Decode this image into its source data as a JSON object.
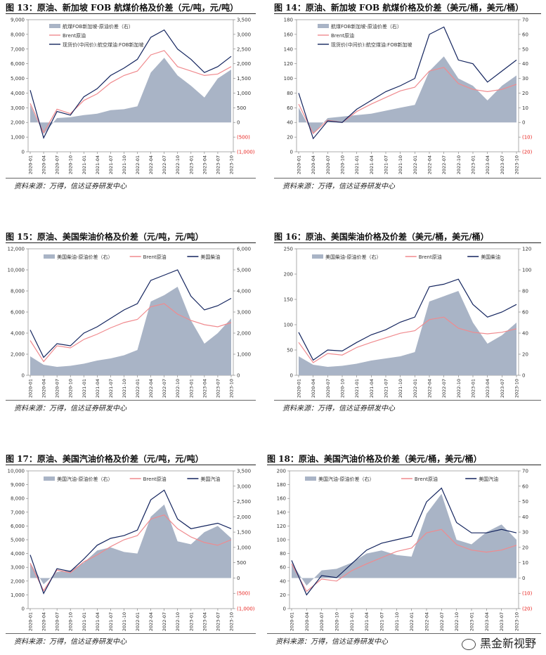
{
  "source_label": "资料来源：万得，信达证券研发中心",
  "watermark": "黑金新视野",
  "colors": {
    "spread": "#a9b4c6",
    "brent": "#f08a8e",
    "product": "#13245e",
    "neg": "#e8201c",
    "axis": "#777777"
  },
  "x_ticks": [
    "2020-01",
    "2020-04",
    "2020-07",
    "2020-10",
    "2021-01",
    "2021-04",
    "2021-07",
    "2021-10",
    "2022-01",
    "2022-04",
    "2022-07",
    "2022-10",
    "2023-01",
    "2023-04",
    "2023-07",
    "2023-10"
  ],
  "chart_data": [
    {
      "type": "line",
      "title": "图 13：原油、新加坡 FOB 航煤价格及价差（元/吨，元/吨）",
      "yleft_ticks": [
        0,
        1000,
        2000,
        3000,
        4000,
        5000,
        6000,
        7000,
        8000,
        9000
      ],
      "yleft_labels": [
        "0",
        "1,000",
        "2,000",
        "3,000",
        "4,000",
        "5,000",
        "6,000",
        "7,000",
        "8,000",
        "9,000"
      ],
      "yright_ticks": [
        -1000,
        -500,
        0,
        500,
        1000,
        1500,
        2000,
        2500,
        3000,
        3500
      ],
      "yright_labels": [
        "(1,000)",
        "(500)",
        "0",
        "500",
        "1,000",
        "1,500",
        "2,000",
        "2,500",
        "3,000",
        "3,500"
      ],
      "ylim_left": [
        0,
        9000
      ],
      "ylim_right": [
        -1000,
        3500
      ],
      "legend": [
        "航煤FOB新加坡-原油价差（右）",
        "Brent原油",
        "现货价(中间价):航空煤油:FOB新加坡"
      ],
      "legend_layout": "vertical",
      "x": [
        "2020-01",
        "2020-04",
        "2020-07",
        "2020-10",
        "2021-01",
        "2021-04",
        "2021-07",
        "2021-10",
        "2022-01",
        "2022-04",
        "2022-07",
        "2022-10",
        "2023-01",
        "2023-04",
        "2023-07",
        "2023-10"
      ],
      "series": [
        {
          "name": "航煤FOB新加坡-原油价差（右）",
          "axis": "right",
          "style": "area",
          "values": [
            600,
            -400,
            150,
            180,
            250,
            300,
            420,
            450,
            550,
            1700,
            2200,
            1600,
            1250,
            850,
            1500,
            1800
          ]
        },
        {
          "name": "Brent原油",
          "axis": "left",
          "style": "line",
          "values": [
            3300,
            1300,
            2900,
            2600,
            3500,
            3950,
            4700,
            5200,
            5500,
            6600,
            6900,
            5800,
            5500,
            5200,
            5300,
            5800
          ]
        },
        {
          "name": "现货价(中间价):航空煤油:FOB新加坡",
          "axis": "left",
          "style": "line",
          "values": [
            4200,
            950,
            2750,
            2500,
            3750,
            4300,
            5200,
            5700,
            6300,
            7800,
            8300,
            7000,
            6300,
            5400,
            5800,
            6500
          ]
        }
      ]
    },
    {
      "type": "line",
      "title": "图 14：原油、新加坡 FOB 航煤价格及价差（美元/桶，美元/桶）",
      "yleft_ticks": [
        0,
        20,
        40,
        60,
        80,
        100,
        120,
        140,
        160,
        180
      ],
      "yleft_labels": [
        "0",
        "20",
        "40",
        "60",
        "80",
        "100",
        "120",
        "140",
        "160",
        "180"
      ],
      "yright_ticks": [
        -20,
        -10,
        0,
        10,
        20,
        30,
        40,
        50,
        60,
        70
      ],
      "yright_labels": [
        "(20)",
        "(10)",
        "0",
        "10",
        "20",
        "30",
        "40",
        "50",
        "60",
        "70"
      ],
      "ylim_left": [
        0,
        180
      ],
      "ylim_right": [
        -20,
        70
      ],
      "legend": [
        "航煤FOB新加坡-原油价差（右）",
        "Brent原油",
        "现货价(中间价):航空煤油:FOB新加坡"
      ],
      "legend_layout": "vertical",
      "x": [
        "2020-01",
        "2020-04",
        "2020-07",
        "2020-10",
        "2021-01",
        "2021-04",
        "2021-07",
        "2021-10",
        "2022-01",
        "2022-04",
        "2022-07",
        "2022-10",
        "2023-01",
        "2023-04",
        "2023-07",
        "2023-10"
      ],
      "series": [
        {
          "name": "航煤FOB新加坡-原油价差（右）",
          "axis": "right",
          "style": "area",
          "values": [
            10,
            -8,
            3,
            4,
            5,
            6,
            8,
            10,
            12,
            35,
            45,
            30,
            25,
            15,
            25,
            32
          ]
        },
        {
          "name": "Brent原油",
          "axis": "left",
          "style": "line",
          "values": [
            65,
            25,
            43,
            40,
            55,
            65,
            74,
            83,
            88,
            110,
            115,
            93,
            85,
            82,
            85,
            92
          ]
        },
        {
          "name": "现货价(中间价):航空煤油:FOB新加坡",
          "axis": "left",
          "style": "line",
          "values": [
            80,
            18,
            42,
            40,
            58,
            70,
            82,
            90,
            100,
            160,
            170,
            125,
            120,
            95,
            110,
            125
          ]
        }
      ]
    },
    {
      "type": "line",
      "title": "图 15：原油、美国柴油价格及价差（元/吨，元/吨）",
      "yleft_ticks": [
        0,
        2000,
        4000,
        6000,
        8000,
        10000,
        12000
      ],
      "yleft_labels": [
        "0",
        "2,000",
        "4,000",
        "6,000",
        "8,000",
        "10,000",
        "12,000"
      ],
      "yright_ticks": [
        0,
        1000,
        2000,
        3000,
        4000,
        5000,
        6000
      ],
      "yright_labels": [
        "0",
        "1,000",
        "2,000",
        "3,000",
        "4,000",
        "5,000",
        "6,000"
      ],
      "ylim_left": [
        0,
        12000
      ],
      "ylim_right": [
        0,
        6000
      ],
      "legend": [
        "美国柴油-原油价差（右）",
        "Brent原油",
        "美国柴油"
      ],
      "legend_layout": "row",
      "x": [
        "2020-01",
        "2020-04",
        "2020-07",
        "2020-10",
        "2021-01",
        "2021-04",
        "2021-07",
        "2021-10",
        "2022-01",
        "2022-04",
        "2022-07",
        "2022-10",
        "2023-01",
        "2023-04",
        "2023-07",
        "2023-10"
      ],
      "series": [
        {
          "name": "美国柴油-原油价差（右）",
          "axis": "right",
          "style": "area",
          "values": [
            900,
            500,
            400,
            450,
            550,
            700,
            800,
            950,
            1200,
            3500,
            3800,
            4200,
            2600,
            1500,
            2000,
            2700
          ]
        },
        {
          "name": "Brent原油",
          "axis": "left",
          "style": "line",
          "values": [
            3300,
            1300,
            2800,
            2600,
            3400,
            3900,
            4500,
            5000,
            5300,
            6500,
            6800,
            5800,
            5200,
            4800,
            4600,
            5000
          ]
        },
        {
          "name": "美国柴油",
          "axis": "left",
          "style": "line",
          "values": [
            4300,
            1700,
            3000,
            2800,
            4000,
            4600,
            5400,
            6200,
            6800,
            9000,
            9500,
            10000,
            7500,
            6200,
            6600,
            7300
          ]
        }
      ]
    },
    {
      "type": "line",
      "title": "图 16：原油、美国柴油价格及价差（美元/桶，美元/桶）",
      "yleft_ticks": [
        0,
        50,
        100,
        150,
        200,
        250
      ],
      "yleft_labels": [
        "0",
        "50",
        "100",
        "150",
        "200",
        "250"
      ],
      "yright_ticks": [
        0,
        20,
        40,
        60,
        80,
        100,
        120
      ],
      "yright_labels": [
        "0",
        "20",
        "40",
        "60",
        "80",
        "100",
        "120"
      ],
      "ylim_left": [
        0,
        250
      ],
      "ylim_right": [
        0,
        120
      ],
      "legend": [
        "美国柴油-原油价差（右）",
        "Brent原油",
        "美国柴油"
      ],
      "legend_layout": "row",
      "x": [
        "2020-01",
        "2020-04",
        "2020-07",
        "2020-10",
        "2021-01",
        "2021-04",
        "2021-07",
        "2021-10",
        "2022-01",
        "2022-04",
        "2022-07",
        "2022-10",
        "2023-01",
        "2023-04",
        "2023-07",
        "2023-10"
      ],
      "series": [
        {
          "name": "美国柴油-原油价差（右）",
          "axis": "right",
          "style": "area",
          "values": [
            18,
            10,
            8,
            9,
            11,
            14,
            16,
            18,
            22,
            70,
            75,
            80,
            50,
            30,
            38,
            50
          ]
        },
        {
          "name": "Brent原油",
          "axis": "left",
          "style": "line",
          "values": [
            65,
            25,
            43,
            40,
            55,
            65,
            74,
            83,
            88,
            110,
            115,
            93,
            85,
            82,
            85,
            92
          ]
        },
        {
          "name": "美国柴油",
          "axis": "left",
          "style": "line",
          "values": [
            85,
            30,
            50,
            48,
            65,
            80,
            90,
            105,
            115,
            175,
            180,
            190,
            140,
            115,
            125,
            140
          ]
        }
      ]
    },
    {
      "type": "line",
      "title": "图 17：原油、美国汽油价格及价差（元/吨，元/吨）",
      "yleft_ticks": [
        0,
        1000,
        2000,
        3000,
        4000,
        5000,
        6000,
        7000,
        8000,
        9000,
        10000
      ],
      "yleft_labels": [
        "0",
        "1,000",
        "2,000",
        "3,000",
        "4,000",
        "5,000",
        "6,000",
        "7,000",
        "8,000",
        "9,000",
        "10,000"
      ],
      "yright_ticks": [
        -1000,
        -500,
        0,
        500,
        1000,
        1500,
        2000,
        2500,
        3000,
        3500
      ],
      "yright_labels": [
        "(1,000)",
        "(500)",
        "0",
        "500",
        "1,000",
        "1,500",
        "2,000",
        "2,500",
        "3,000",
        "3,500"
      ],
      "ylim_left": [
        0,
        10000
      ],
      "ylim_right": [
        -1000,
        3500
      ],
      "legend": [
        "美国汽油-原油价差（右）",
        "Brent原油",
        "美国汽油"
      ],
      "legend_layout": "row",
      "x": [
        "2020-01",
        "2020-04",
        "2020-07",
        "2020-10",
        "2021-01",
        "2021-04",
        "2021-07",
        "2021-10",
        "2022-01",
        "2022-04",
        "2022-07",
        "2022-10",
        "2023-01",
        "2023-04",
        "2023-07",
        "2023-10"
      ],
      "series": [
        {
          "name": "美国汽油-原油价差（右）",
          "axis": "right",
          "style": "area",
          "values": [
            500,
            -200,
            200,
            250,
            500,
            900,
            1000,
            850,
            800,
            2000,
            2400,
            1200,
            1100,
            1500,
            1700,
            1300
          ]
        },
        {
          "name": "Brent原油",
          "axis": "left",
          "style": "line",
          "values": [
            3300,
            1300,
            2800,
            2600,
            3400,
            3900,
            4500,
            5000,
            5300,
            6500,
            6800,
            5800,
            5200,
            4800,
            4600,
            5000
          ]
        },
        {
          "name": "美国汽油",
          "axis": "left",
          "style": "line",
          "values": [
            3900,
            1100,
            2900,
            2700,
            3600,
            4600,
            5100,
            5300,
            5700,
            7900,
            8600,
            6500,
            5800,
            6000,
            6200,
            5800
          ]
        }
      ]
    },
    {
      "type": "line",
      "title": "图 18：原油、美国汽油价格及价差（美元/桶，美元/桶）",
      "yleft_ticks": [
        0,
        20,
        40,
        60,
        80,
        100,
        120,
        140,
        160,
        180,
        200
      ],
      "yleft_labels": [
        "0",
        "20",
        "40",
        "60",
        "80",
        "100",
        "120",
        "140",
        "160",
        "180",
        "200"
      ],
      "yright_ticks": [
        -20,
        -10,
        0,
        10,
        20,
        30,
        40,
        50,
        60,
        70
      ],
      "yright_labels": [
        "(20)",
        "(10)",
        "0",
        "10",
        "20",
        "30",
        "40",
        "50",
        "60",
        "70"
      ],
      "ylim_left": [
        0,
        200
      ],
      "ylim_right": [
        -20,
        70
      ],
      "legend": [
        "美国汽油-原油价差（右）",
        "Brent原油",
        "美国汽油"
      ],
      "legend_layout": "row",
      "x": [
        "2020-01",
        "2020-04",
        "2020-07",
        "2020-10",
        "2021-01",
        "2021-04",
        "2021-07",
        "2021-10",
        "2022-01",
        "2022-04",
        "2022-07",
        "2022-10",
        "2023-01",
        "2023-04",
        "2023-07",
        "2023-10"
      ],
      "series": [
        {
          "name": "美国汽油-原油价差（右）",
          "axis": "right",
          "style": "area",
          "values": [
            10,
            -5,
            5,
            6,
            10,
            16,
            18,
            15,
            14,
            42,
            55,
            25,
            22,
            30,
            35,
            25
          ]
        },
        {
          "name": "Brent原油",
          "axis": "left",
          "style": "line",
          "values": [
            65,
            25,
            43,
            40,
            55,
            65,
            74,
            83,
            88,
            110,
            115,
            93,
            85,
            82,
            85,
            92
          ]
        },
        {
          "name": "美国汽油",
          "axis": "left",
          "style": "line",
          "values": [
            70,
            20,
            48,
            45,
            65,
            85,
            95,
            100,
            105,
            155,
            175,
            125,
            110,
            110,
            115,
            110
          ]
        }
      ]
    }
  ]
}
